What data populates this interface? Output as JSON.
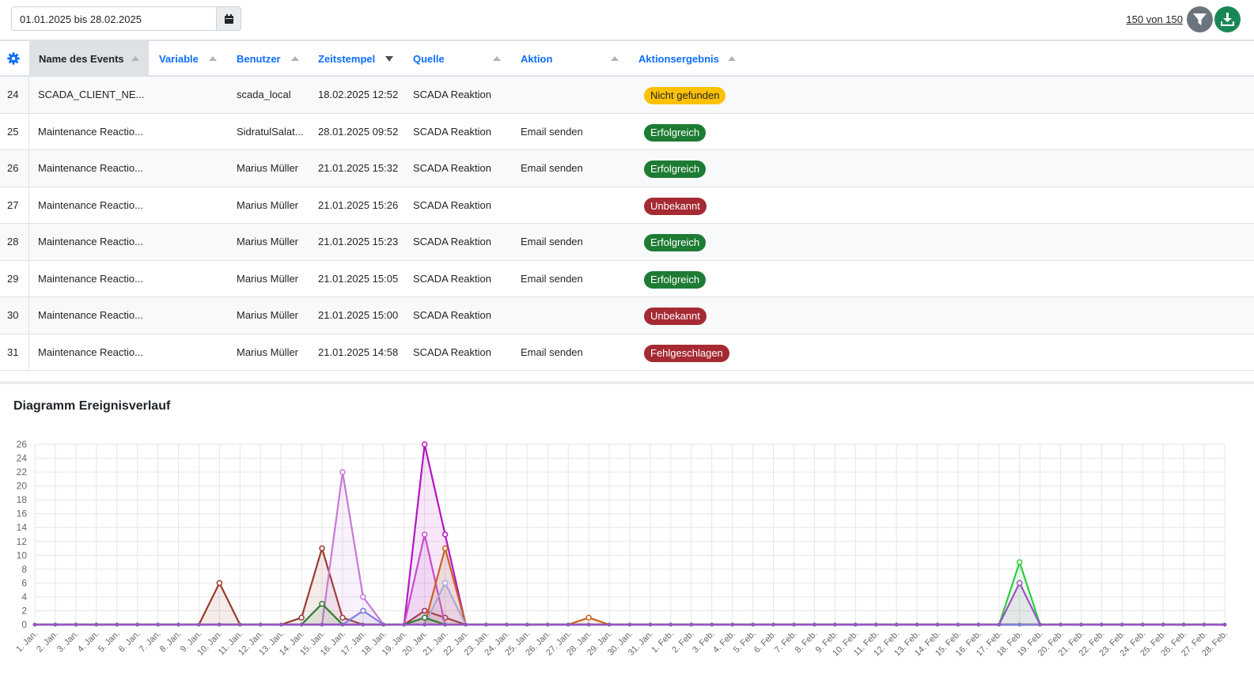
{
  "filter": {
    "date_range": "01.01.2025 bis 28.02.2025",
    "count_label": "150 von 150"
  },
  "icons": {
    "calendar": "calendar-icon",
    "filter": "filter-icon",
    "download": "download-icon",
    "settings": "gear-icon"
  },
  "colors": {
    "link": "#0d6efd",
    "success": "#1e7b34",
    "danger": "#a52a32",
    "warning": "#ffc107"
  },
  "table": {
    "columns": [
      "Name des Events",
      "Variable",
      "Benutzer",
      "Zeitstempel",
      "Quelle",
      "Aktion",
      "Aktionsergebnis"
    ],
    "sorted_column": "Zeitstempel",
    "rows": [
      {
        "id": "24",
        "name": "SCADA_CLIENT_NE...",
        "variable": "",
        "user": "scada_local",
        "timestamp": "18.02.2025 12:52",
        "source": "SCADA Reaktion",
        "action": "",
        "result": "Nicht gefunden",
        "status": "warning"
      },
      {
        "id": "25",
        "name": "Maintenance Reactio...",
        "variable": "",
        "user": "SidratulSalat...",
        "timestamp": "28.01.2025 09:52",
        "source": "SCADA Reaktion",
        "action": "Email senden",
        "result": "Erfolgreich",
        "status": "success"
      },
      {
        "id": "26",
        "name": "Maintenance Reactio...",
        "variable": "",
        "user": "Marius Müller",
        "timestamp": "21.01.2025 15:32",
        "source": "SCADA Reaktion",
        "action": "Email senden",
        "result": "Erfolgreich",
        "status": "success"
      },
      {
        "id": "27",
        "name": "Maintenance Reactio...",
        "variable": "",
        "user": "Marius Müller",
        "timestamp": "21.01.2025 15:26",
        "source": "SCADA Reaktion",
        "action": "",
        "result": "Unbekannt",
        "status": "danger"
      },
      {
        "id": "28",
        "name": "Maintenance Reactio...",
        "variable": "",
        "user": "Marius Müller",
        "timestamp": "21.01.2025 15:23",
        "source": "SCADA Reaktion",
        "action": "Email senden",
        "result": "Erfolgreich",
        "status": "success"
      },
      {
        "id": "29",
        "name": "Maintenance Reactio...",
        "variable": "",
        "user": "Marius Müller",
        "timestamp": "21.01.2025 15:05",
        "source": "SCADA Reaktion",
        "action": "Email senden",
        "result": "Erfolgreich",
        "status": "success"
      },
      {
        "id": "30",
        "name": "Maintenance Reactio...",
        "variable": "",
        "user": "Marius Müller",
        "timestamp": "21.01.2025 15:00",
        "source": "SCADA Reaktion",
        "action": "",
        "result": "Unbekannt",
        "status": "danger"
      },
      {
        "id": "31",
        "name": "Maintenance Reactio...",
        "variable": "",
        "user": "Marius Müller",
        "timestamp": "21.01.2025 14:58",
        "source": "SCADA Reaktion",
        "action": "Email senden",
        "result": "Fehlgeschlagen",
        "status": "danger"
      }
    ]
  },
  "chart_section": {
    "title": "Diagramm Ereignisverlauf"
  },
  "chart_data": {
    "type": "area",
    "title": "Diagramm Ereignisverlauf",
    "xlabel": "",
    "ylabel": "",
    "ylim": [
      0,
      26
    ],
    "grid": true,
    "legend": "none",
    "categories": [
      "1. Jan.",
      "2. Jan.",
      "3. Jan.",
      "4. Jan.",
      "5. Jan.",
      "6. Jan.",
      "7. Jan.",
      "8. Jan.",
      "9. Jan.",
      "10. Jan.",
      "11. Jan.",
      "12. Jan.",
      "13. Jan.",
      "14. Jan.",
      "15. Jan.",
      "16. Jan.",
      "17. Jan.",
      "18. Jan.",
      "19. Jan.",
      "20. Jan.",
      "21. Jan.",
      "22. Jan.",
      "23. Jan.",
      "24. Jan.",
      "25. Jan.",
      "26. Jan.",
      "27. Jan.",
      "28. Jan.",
      "29. Jan.",
      "30. Jan.",
      "31. Jan.",
      "1. Feb.",
      "2. Feb.",
      "3. Feb.",
      "4. Feb.",
      "5. Feb.",
      "6. Feb.",
      "7. Feb.",
      "8. Feb.",
      "9. Feb.",
      "10. Feb.",
      "11. Feb.",
      "12. Feb.",
      "13. Feb.",
      "14. Feb.",
      "15. Feb.",
      "16. Feb.",
      "17. Feb.",
      "18. Feb.",
      "19. Feb.",
      "20. Feb.",
      "21. Feb.",
      "22. Feb.",
      "23. Feb.",
      "24. Feb.",
      "25. Feb.",
      "26. Feb.",
      "27. Feb.",
      "28. Feb."
    ],
    "yticks": [
      "0",
      "2",
      "4",
      "6",
      "8",
      "10",
      "12",
      "14",
      "16",
      "18",
      "20",
      "22",
      "24",
      "26"
    ],
    "series": [
      {
        "color": "#9b3a2e",
        "values": [
          0,
          0,
          0,
          0,
          0,
          0,
          0,
          0,
          0,
          6,
          0,
          0,
          0,
          1,
          11,
          1,
          0,
          0,
          0,
          2,
          1,
          0,
          0,
          0,
          0,
          0,
          0,
          0,
          0,
          0,
          0,
          0,
          0,
          0,
          0,
          0,
          0,
          0,
          0,
          0,
          0,
          0,
          0,
          0,
          0,
          0,
          0,
          0,
          0,
          0,
          0,
          0,
          0,
          0,
          0,
          0,
          0,
          0,
          0
        ]
      },
      {
        "color": "#c77ad8",
        "values": [
          0,
          0,
          0,
          0,
          0,
          0,
          0,
          0,
          0,
          0,
          0,
          0,
          0,
          0,
          0,
          22,
          4,
          0,
          0,
          0,
          0,
          0,
          0,
          0,
          0,
          0,
          0,
          0,
          0,
          0,
          0,
          0,
          0,
          0,
          0,
          0,
          0,
          0,
          0,
          0,
          0,
          0,
          0,
          0,
          0,
          0,
          0,
          0,
          0,
          0,
          0,
          0,
          0,
          0,
          0,
          0,
          0,
          0,
          0
        ]
      },
      {
        "color": "#b515c4",
        "values": [
          0,
          0,
          0,
          0,
          0,
          0,
          0,
          0,
          0,
          0,
          0,
          0,
          0,
          0,
          0,
          0,
          0,
          0,
          0,
          26,
          13,
          0,
          0,
          0,
          0,
          0,
          0,
          0,
          0,
          0,
          0,
          0,
          0,
          0,
          0,
          0,
          0,
          0,
          0,
          0,
          0,
          0,
          0,
          0,
          0,
          0,
          0,
          0,
          0,
          0,
          0,
          0,
          0,
          0,
          0,
          0,
          0,
          0,
          0
        ]
      },
      {
        "color": "#c94ccd",
        "values": [
          0,
          0,
          0,
          0,
          0,
          0,
          0,
          0,
          0,
          0,
          0,
          0,
          0,
          0,
          0,
          0,
          0,
          0,
          0,
          13,
          0,
          0,
          0,
          0,
          0,
          0,
          0,
          0,
          0,
          0,
          0,
          0,
          0,
          0,
          0,
          0,
          0,
          0,
          0,
          0,
          0,
          0,
          0,
          0,
          0,
          0,
          0,
          0,
          0,
          0,
          0,
          0,
          0,
          0,
          0,
          0,
          0,
          0,
          0
        ]
      },
      {
        "color": "#c8621d",
        "values": [
          0,
          0,
          0,
          0,
          0,
          0,
          0,
          0,
          0,
          0,
          0,
          0,
          0,
          0,
          0,
          0,
          0,
          0,
          0,
          0,
          11,
          0,
          0,
          0,
          0,
          0,
          0,
          1,
          0,
          0,
          0,
          0,
          0,
          0,
          0,
          0,
          0,
          0,
          0,
          0,
          0,
          0,
          0,
          0,
          0,
          0,
          0,
          0,
          0,
          0,
          0,
          0,
          0,
          0,
          0,
          0,
          0,
          0,
          0
        ]
      },
      {
        "color": "#a7a9d6",
        "values": [
          0,
          0,
          0,
          0,
          0,
          0,
          0,
          0,
          0,
          0,
          0,
          0,
          0,
          0,
          0,
          0,
          0,
          0,
          0,
          0,
          6,
          0,
          0,
          0,
          0,
          0,
          0,
          0,
          0,
          0,
          0,
          0,
          0,
          0,
          0,
          0,
          0,
          0,
          0,
          0,
          0,
          0,
          0,
          0,
          0,
          0,
          0,
          0,
          0,
          0,
          0,
          0,
          0,
          0,
          0,
          0,
          0,
          0,
          0
        ]
      },
      {
        "color": "#2e7d32",
        "values": [
          0,
          0,
          0,
          0,
          0,
          0,
          0,
          0,
          0,
          0,
          0,
          0,
          0,
          0,
          3,
          0,
          0,
          0,
          0,
          1,
          0,
          0,
          0,
          0,
          0,
          0,
          0,
          0,
          0,
          0,
          0,
          0,
          0,
          0,
          0,
          0,
          0,
          0,
          0,
          0,
          0,
          0,
          0,
          0,
          0,
          0,
          0,
          0,
          0,
          0,
          0,
          0,
          0,
          0,
          0,
          0,
          0,
          0,
          0
        ]
      },
      {
        "color": "#7e7ee0",
        "values": [
          0,
          0,
          0,
          0,
          0,
          0,
          0,
          0,
          0,
          0,
          0,
          0,
          0,
          0,
          0,
          0,
          2,
          0,
          0,
          0,
          0,
          0,
          0,
          0,
          0,
          0,
          0,
          0,
          0,
          0,
          0,
          0,
          0,
          0,
          0,
          0,
          0,
          0,
          0,
          0,
          0,
          0,
          0,
          0,
          0,
          0,
          0,
          0,
          0,
          0,
          0,
          0,
          0,
          0,
          0,
          0,
          0,
          0,
          0
        ]
      },
      {
        "color": "#2ecc40",
        "values": [
          0,
          0,
          0,
          0,
          0,
          0,
          0,
          0,
          0,
          0,
          0,
          0,
          0,
          0,
          0,
          0,
          0,
          0,
          0,
          0,
          0,
          0,
          0,
          0,
          0,
          0,
          0,
          0,
          0,
          0,
          0,
          0,
          0,
          0,
          0,
          0,
          0,
          0,
          0,
          0,
          0,
          0,
          0,
          0,
          0,
          0,
          0,
          0,
          9,
          0,
          0,
          0,
          0,
          0,
          0,
          0,
          0,
          0,
          0
        ]
      },
      {
        "color": "#9a52c8",
        "values": [
          0,
          0,
          0,
          0,
          0,
          0,
          0,
          0,
          0,
          0,
          0,
          0,
          0,
          0,
          0,
          0,
          0,
          0,
          0,
          0,
          0,
          0,
          0,
          0,
          0,
          0,
          0,
          0,
          0,
          0,
          0,
          0,
          0,
          0,
          0,
          0,
          0,
          0,
          0,
          0,
          0,
          0,
          0,
          0,
          0,
          0,
          0,
          0,
          6,
          0,
          0,
          0,
          0,
          0,
          0,
          0,
          0,
          0,
          0
        ]
      }
    ]
  }
}
